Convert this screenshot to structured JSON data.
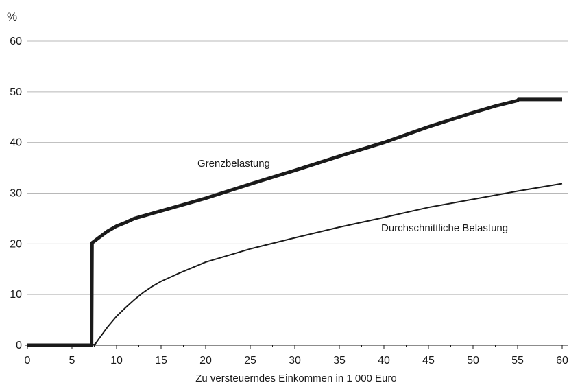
{
  "chart_data": {
    "type": "line",
    "y_unit": "%",
    "xlabel": "Zu versteuerndes Einkommen in 1 000 Euro",
    "ylabel": "",
    "xlim": [
      0,
      60
    ],
    "ylim": [
      0,
      60
    ],
    "x_ticks": [
      "0",
      "5",
      "10",
      "15",
      "20",
      "25",
      "30",
      "35",
      "40",
      "45",
      "50",
      "55",
      "60"
    ],
    "y_ticks": [
      "0",
      "10",
      "20",
      "30",
      "40",
      "50",
      "60"
    ],
    "grid": "horizontal",
    "series": [
      {
        "name": "Grenzbelastung",
        "style": "thick",
        "color": "#1a1a1a",
        "x": [
          0,
          7.2,
          7.25,
          8,
          9,
          10,
          11,
          12,
          13,
          14,
          15,
          17,
          20,
          25,
          30,
          35,
          40,
          45,
          50,
          52.5,
          55,
          55.1,
          60
        ],
        "y": [
          0,
          0,
          20.2,
          21.2,
          22.5,
          23.5,
          24.2,
          25.0,
          25.5,
          26.0,
          26.5,
          27.5,
          29.0,
          31.8,
          34.5,
          37.3,
          40.0,
          43.1,
          45.9,
          47.2,
          48.3,
          48.5,
          48.5
        ]
      },
      {
        "name": "Durchschnittliche Belastung",
        "style": "thin",
        "color": "#1a1a1a",
        "x": [
          0,
          7.2,
          7.6,
          8,
          9,
          10,
          11,
          12,
          13,
          14,
          15,
          17,
          20,
          25,
          30,
          35,
          40,
          45,
          50,
          55,
          60
        ],
        "y": [
          0,
          0,
          0.2,
          1.2,
          3.6,
          5.7,
          7.4,
          9.0,
          10.4,
          11.6,
          12.6,
          14.2,
          16.4,
          19.0,
          21.2,
          23.3,
          25.2,
          27.2,
          28.8,
          30.4,
          31.9
        ]
      }
    ]
  }
}
